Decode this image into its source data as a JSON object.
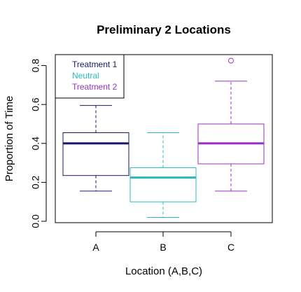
{
  "chart_data": {
    "type": "boxplot",
    "title": "Preliminary 2 Locations",
    "xlabel": "Location (A,B,C)",
    "ylabel": "Proportion of Time",
    "ylim": [
      0,
      0.85
    ],
    "yticks": [
      "0.0",
      "0.2",
      "0.4",
      "0.6",
      "0.8"
    ],
    "categories": [
      "A",
      "B",
      "C"
    ],
    "series": [
      {
        "name": "Treatment 1",
        "color": "#191970",
        "whisker_low": 0.155,
        "q1": 0.235,
        "median": 0.4,
        "q3": 0.455,
        "whisker_high": 0.595,
        "outliers": []
      },
      {
        "name": "Neutral",
        "color": "#2bbdbd",
        "whisker_low": 0.02,
        "q1": 0.1,
        "median": 0.225,
        "q3": 0.275,
        "whisker_high": 0.455,
        "outliers": []
      },
      {
        "name": "Treatment 2",
        "color": "#9932cc",
        "whisker_low": 0.155,
        "q1": 0.295,
        "median": 0.4,
        "q3": 0.5,
        "whisker_high": 0.72,
        "outliers": [
          0.825
        ]
      }
    ],
    "legend": {
      "position": "top-left",
      "entries": [
        "Treatment 1",
        "Neutral",
        "Treatment 2"
      ]
    },
    "grid": false
  }
}
